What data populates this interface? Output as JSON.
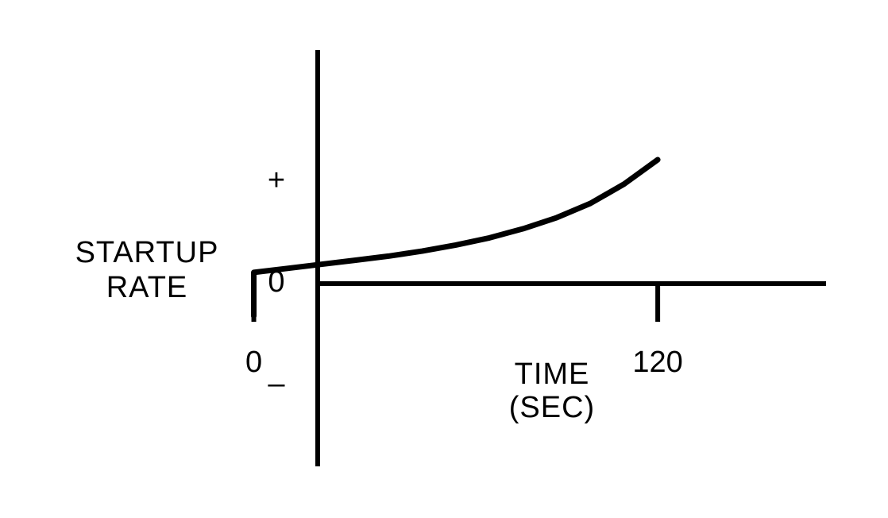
{
  "chart_data": {
    "type": "line",
    "title": "",
    "xlabel_lines": [
      "TIME",
      "(SEC)"
    ],
    "ylabel_lines": [
      "STARTUP",
      "RATE"
    ],
    "x_ticks": [
      {
        "value": 0,
        "label": "0"
      },
      {
        "value": 120,
        "label": "120"
      }
    ],
    "y_ticks": [
      {
        "value": 1,
        "label": "+"
      },
      {
        "value": 0,
        "label": "0"
      },
      {
        "value": -1,
        "label": "–"
      }
    ],
    "xlim": [
      -40,
      170
    ],
    "ylim": [
      -1.8,
      2.3
    ],
    "grid": false,
    "series": [
      {
        "x": [
          0,
          0,
          10,
          20,
          30,
          40,
          50,
          60,
          70,
          80,
          90,
          100,
          110,
          120
        ],
        "y": [
          -0.32,
          0.11,
          0.15,
          0.19,
          0.23,
          0.27,
          0.32,
          0.38,
          0.45,
          0.54,
          0.65,
          0.79,
          0.98,
          1.22
        ]
      }
    ]
  }
}
